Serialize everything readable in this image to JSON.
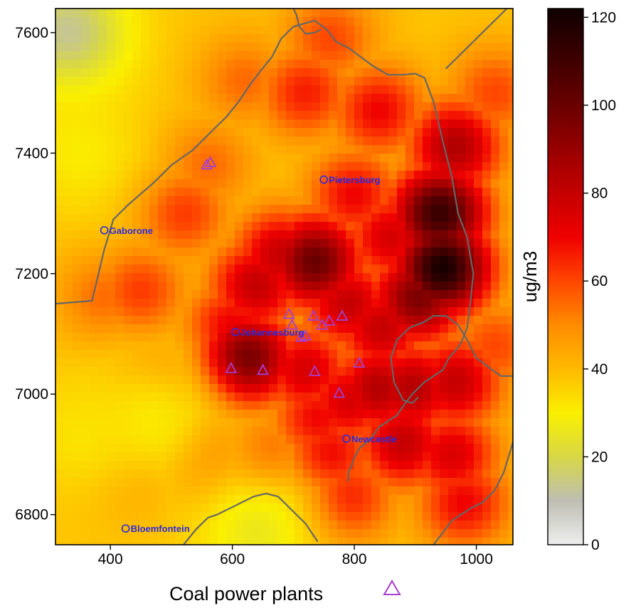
{
  "chart_data": {
    "type": "heatmap",
    "xlim": [
      310,
      1060
    ],
    "ylim": [
      6750,
      7640
    ],
    "x_ticks": [
      400,
      600,
      800,
      1000
    ],
    "y_ticks": [
      6800,
      7000,
      7200,
      7400,
      7600
    ],
    "colorbar": {
      "label": "ug/m3",
      "range": [
        0,
        122
      ],
      "ticks": [
        0,
        20,
        40,
        60,
        80,
        100,
        120
      ]
    },
    "hotspots": [
      {
        "x": 945,
        "y": 7210,
        "value": 120
      },
      {
        "x": 940,
        "y": 7300,
        "value": 112
      },
      {
        "x": 905,
        "y": 7160,
        "value": 96
      },
      {
        "x": 965,
        "y": 7410,
        "value": 85
      },
      {
        "x": 735,
        "y": 7220,
        "value": 100
      },
      {
        "x": 680,
        "y": 7230,
        "value": 80
      },
      {
        "x": 625,
        "y": 7060,
        "value": 98
      },
      {
        "x": 640,
        "y": 7180,
        "value": 80
      },
      {
        "x": 600,
        "y": 7110,
        "value": 72
      },
      {
        "x": 790,
        "y": 7150,
        "value": 80
      },
      {
        "x": 840,
        "y": 7010,
        "value": 84
      },
      {
        "x": 845,
        "y": 7110,
        "value": 80
      },
      {
        "x": 895,
        "y": 7010,
        "value": 84
      },
      {
        "x": 965,
        "y": 7020,
        "value": 80
      },
      {
        "x": 860,
        "y": 7260,
        "value": 76
      },
      {
        "x": 800,
        "y": 7330,
        "value": 70
      },
      {
        "x": 720,
        "y": 7040,
        "value": 76
      },
      {
        "x": 740,
        "y": 6960,
        "value": 70
      },
      {
        "x": 790,
        "y": 6990,
        "value": 76
      },
      {
        "x": 760,
        "y": 6900,
        "value": 70
      },
      {
        "x": 880,
        "y": 6920,
        "value": 80
      },
      {
        "x": 960,
        "y": 6900,
        "value": 75
      },
      {
        "x": 980,
        "y": 6820,
        "value": 70
      },
      {
        "x": 790,
        "y": 6830,
        "value": 66
      },
      {
        "x": 720,
        "y": 7500,
        "value": 66
      },
      {
        "x": 840,
        "y": 7470,
        "value": 70
      },
      {
        "x": 760,
        "y": 7590,
        "value": 60
      },
      {
        "x": 620,
        "y": 7520,
        "value": 55
      },
      {
        "x": 560,
        "y": 7380,
        "value": 55
      },
      {
        "x": 520,
        "y": 7300,
        "value": 62
      },
      {
        "x": 450,
        "y": 7170,
        "value": 62
      },
      {
        "x": 390,
        "y": 7160,
        "value": 55
      },
      {
        "x": 480,
        "y": 7020,
        "value": 50
      },
      {
        "x": 560,
        "y": 6900,
        "value": 52
      },
      {
        "x": 440,
        "y": 6870,
        "value": 46
      },
      {
        "x": 660,
        "y": 6900,
        "value": 56
      },
      {
        "x": 1030,
        "y": 7080,
        "value": 60
      },
      {
        "x": 1030,
        "y": 7500,
        "value": 60
      }
    ],
    "low_spots": [
      {
        "x": 330,
        "y": 7600,
        "value": 10
      },
      {
        "x": 640,
        "y": 6770,
        "value": 25
      },
      {
        "x": 470,
        "y": 6960,
        "value": 30
      },
      {
        "x": 350,
        "y": 6930,
        "value": 32
      },
      {
        "x": 350,
        "y": 7400,
        "value": 30
      }
    ],
    "background_value": 38,
    "cities": [
      {
        "name": "Pietersburg",
        "x": 750,
        "y": 7356
      },
      {
        "name": "Gaborone",
        "x": 390,
        "y": 7272
      },
      {
        "name": "Johannesburg",
        "x": 605,
        "y": 7103
      },
      {
        "name": "Newcastle",
        "x": 787,
        "y": 6926
      },
      {
        "name": "Bloemfontein",
        "x": 425,
        "y": 6777
      }
    ],
    "power_plants": [
      {
        "x": 558,
        "y": 7381
      },
      {
        "x": 564,
        "y": 7385
      },
      {
        "x": 693,
        "y": 7133
      },
      {
        "x": 698,
        "y": 7115
      },
      {
        "x": 733,
        "y": 7130
      },
      {
        "x": 747,
        "y": 7115
      },
      {
        "x": 759,
        "y": 7122
      },
      {
        "x": 780,
        "y": 7130
      },
      {
        "x": 713,
        "y": 7095
      },
      {
        "x": 720,
        "y": 7097
      },
      {
        "x": 598,
        "y": 7043
      },
      {
        "x": 650,
        "y": 7040
      },
      {
        "x": 735,
        "y": 7038
      },
      {
        "x": 808,
        "y": 7052
      },
      {
        "x": 775,
        "y": 7002
      }
    ],
    "borders": [
      [
        [
          310,
          7150
        ],
        [
          370,
          7155
        ],
        [
          390,
          7240
        ],
        [
          405,
          7290
        ],
        [
          430,
          7315
        ],
        [
          470,
          7350
        ],
        [
          500,
          7380
        ],
        [
          535,
          7405
        ],
        [
          555,
          7425
        ],
        [
          570,
          7440
        ],
        [
          590,
          7460
        ],
        [
          610,
          7485
        ],
        [
          630,
          7515
        ],
        [
          645,
          7535
        ],
        [
          665,
          7560
        ],
        [
          680,
          7590
        ],
        [
          700,
          7610
        ],
        [
          735,
          7620
        ],
        [
          755,
          7605
        ],
        [
          770,
          7585
        ],
        [
          790,
          7575
        ],
        [
          810,
          7560
        ],
        [
          830,
          7545
        ],
        [
          855,
          7530
        ],
        [
          880,
          7530
        ],
        [
          900,
          7532
        ],
        [
          915,
          7525
        ],
        [
          930,
          7485
        ],
        [
          945,
          7420
        ],
        [
          960,
          7360
        ],
        [
          970,
          7300
        ],
        [
          985,
          7260
        ],
        [
          990,
          7230
        ],
        [
          995,
          7200
        ],
        [
          990,
          7150
        ],
        [
          985,
          7110
        ],
        [
          975,
          7085
        ],
        [
          968,
          7075
        ],
        [
          955,
          7060
        ],
        [
          945,
          7040
        ],
        [
          930,
          7030
        ],
        [
          915,
          7020
        ],
        [
          905,
          7010
        ],
        [
          895,
          7000
        ],
        [
          880,
          6980
        ],
        [
          870,
          6965
        ],
        [
          855,
          6955
        ],
        [
          840,
          6945
        ],
        [
          830,
          6930
        ],
        [
          820,
          6920
        ],
        [
          808,
          6910
        ],
        [
          800,
          6895
        ],
        [
          795,
          6880
        ],
        [
          790,
          6870
        ],
        [
          790,
          6855
        ]
      ],
      [
        [
          860,
          7060
        ],
        [
          870,
          7090
        ],
        [
          890,
          7110
        ],
        [
          915,
          7120
        ],
        [
          930,
          7130
        ],
        [
          950,
          7130
        ],
        [
          970,
          7115
        ],
        [
          985,
          7090
        ],
        [
          1000,
          7060
        ],
        [
          1040,
          7030
        ],
        [
          1060,
          7030
        ]
      ],
      [
        [
          860,
          7060
        ],
        [
          865,
          7020
        ],
        [
          880,
          6990
        ],
        [
          895,
          6985
        ],
        [
          905,
          6995
        ]
      ],
      [
        [
          950,
          7540
        ],
        [
          980,
          7570
        ],
        [
          1010,
          7600
        ],
        [
          1040,
          7630
        ],
        [
          1050,
          7640
        ]
      ],
      [
        [
          1060,
          6920
        ],
        [
          1045,
          6870
        ],
        [
          1030,
          6840
        ],
        [
          1010,
          6820
        ],
        [
          990,
          6810
        ],
        [
          975,
          6800
        ],
        [
          960,
          6790
        ],
        [
          945,
          6770
        ],
        [
          930,
          6750
        ]
      ],
      [
        [
          520,
          6750
        ],
        [
          540,
          6775
        ],
        [
          560,
          6795
        ],
        [
          575,
          6800
        ],
        [
          595,
          6810
        ],
        [
          615,
          6820
        ],
        [
          635,
          6830
        ],
        [
          655,
          6835
        ],
        [
          675,
          6830
        ],
        [
          690,
          6815
        ],
        [
          705,
          6800
        ],
        [
          720,
          6785
        ],
        [
          730,
          6770
        ],
        [
          740,
          6755
        ]
      ],
      [
        [
          700,
          7640
        ],
        [
          705,
          7630
        ],
        [
          710,
          7610
        ],
        [
          720,
          7598
        ],
        [
          735,
          7600
        ],
        [
          745,
          7605
        ]
      ]
    ],
    "legend": {
      "label": "Coal power plants"
    }
  }
}
